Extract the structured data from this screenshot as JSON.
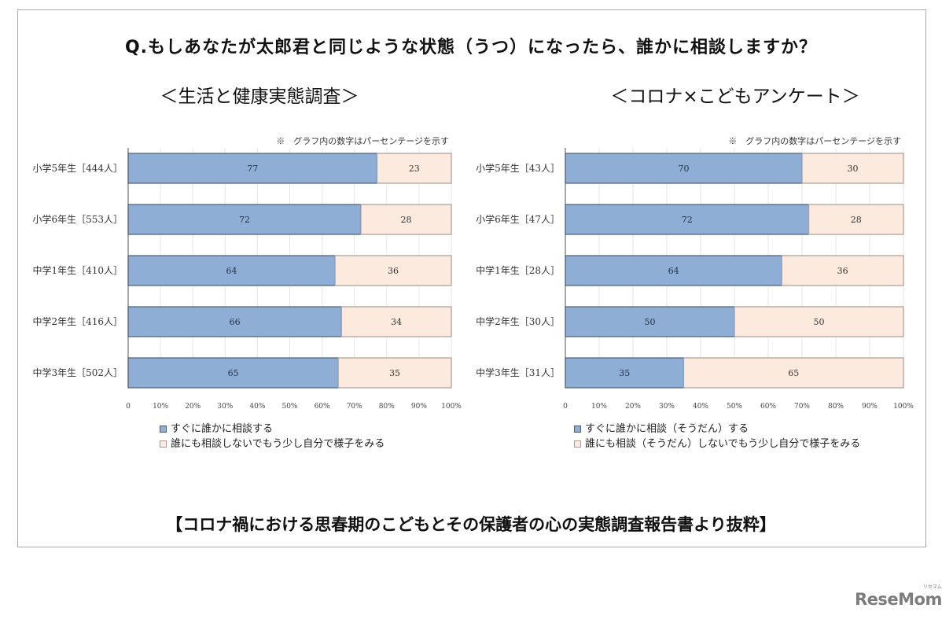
{
  "question": "Q.もしあなたが太郎君と同じような状態（うつ）になったら、誰かに相談しますか？",
  "footer": "【コロナ禍における思春期のこどもとその保護者の心の実態調査報告書より抜粋】",
  "logo": {
    "text": "ReseMom",
    "small": "リセマム"
  },
  "colors": {
    "consult": "#8eaed6",
    "consult_border": "#4a5d73",
    "not_consult": "#fdeadf",
    "not_consult_border": "#a79c98",
    "grid": "#e6e6e6",
    "axis": "#6f6f6f"
  },
  "chart_data": [
    {
      "type": "bar",
      "orientation": "horizontal",
      "stacked": true,
      "title": "＜生活と健康実態調査＞",
      "note": "※　グラフ内の数字はパーセンテージを示す",
      "categories": [
        "小学5年生［444人］",
        "小学6年生［553人］",
        "中学1年生［410人］",
        "中学2年生［416人］",
        "中学3年生［502人］"
      ],
      "series": [
        {
          "name": "すぐに誰かに相談する",
          "values": [
            77,
            72,
            64,
            66,
            65
          ]
        },
        {
          "name": "誰にも相談しないでもう少し自分で様子をみる",
          "values": [
            23,
            28,
            36,
            34,
            35
          ]
        }
      ],
      "xticks": [
        "0",
        "10%",
        "20%",
        "30%",
        "40%",
        "50%",
        "60%",
        "70%",
        "80%",
        "90%",
        "100%"
      ],
      "xlim": [
        0,
        100
      ],
      "grid": true,
      "legend_position": "bottom"
    },
    {
      "type": "bar",
      "orientation": "horizontal",
      "stacked": true,
      "title": "＜コロナ×こどもアンケート＞",
      "note": "※　グラフ内の数字はパーセンテージを示す",
      "categories": [
        "小学5年生［43人］",
        "小学6年生［47人］",
        "中学1年生［28人］",
        "中学2年生［30人］",
        "中学3年生［31人］"
      ],
      "series": [
        {
          "name": "すぐに誰かに相談（そうだん）する",
          "values": [
            70,
            72,
            64,
            50,
            35
          ]
        },
        {
          "name": "誰にも相談（そうだん）しないでもう少し自分で様子をみる",
          "values": [
            30,
            28,
            36,
            50,
            65
          ]
        }
      ],
      "xticks": [
        "0",
        "10%",
        "20%",
        "30%",
        "40%",
        "50%",
        "60%",
        "70%",
        "80%",
        "90%",
        "100%"
      ],
      "xlim": [
        0,
        100
      ],
      "grid": true,
      "legend_position": "bottom"
    }
  ]
}
